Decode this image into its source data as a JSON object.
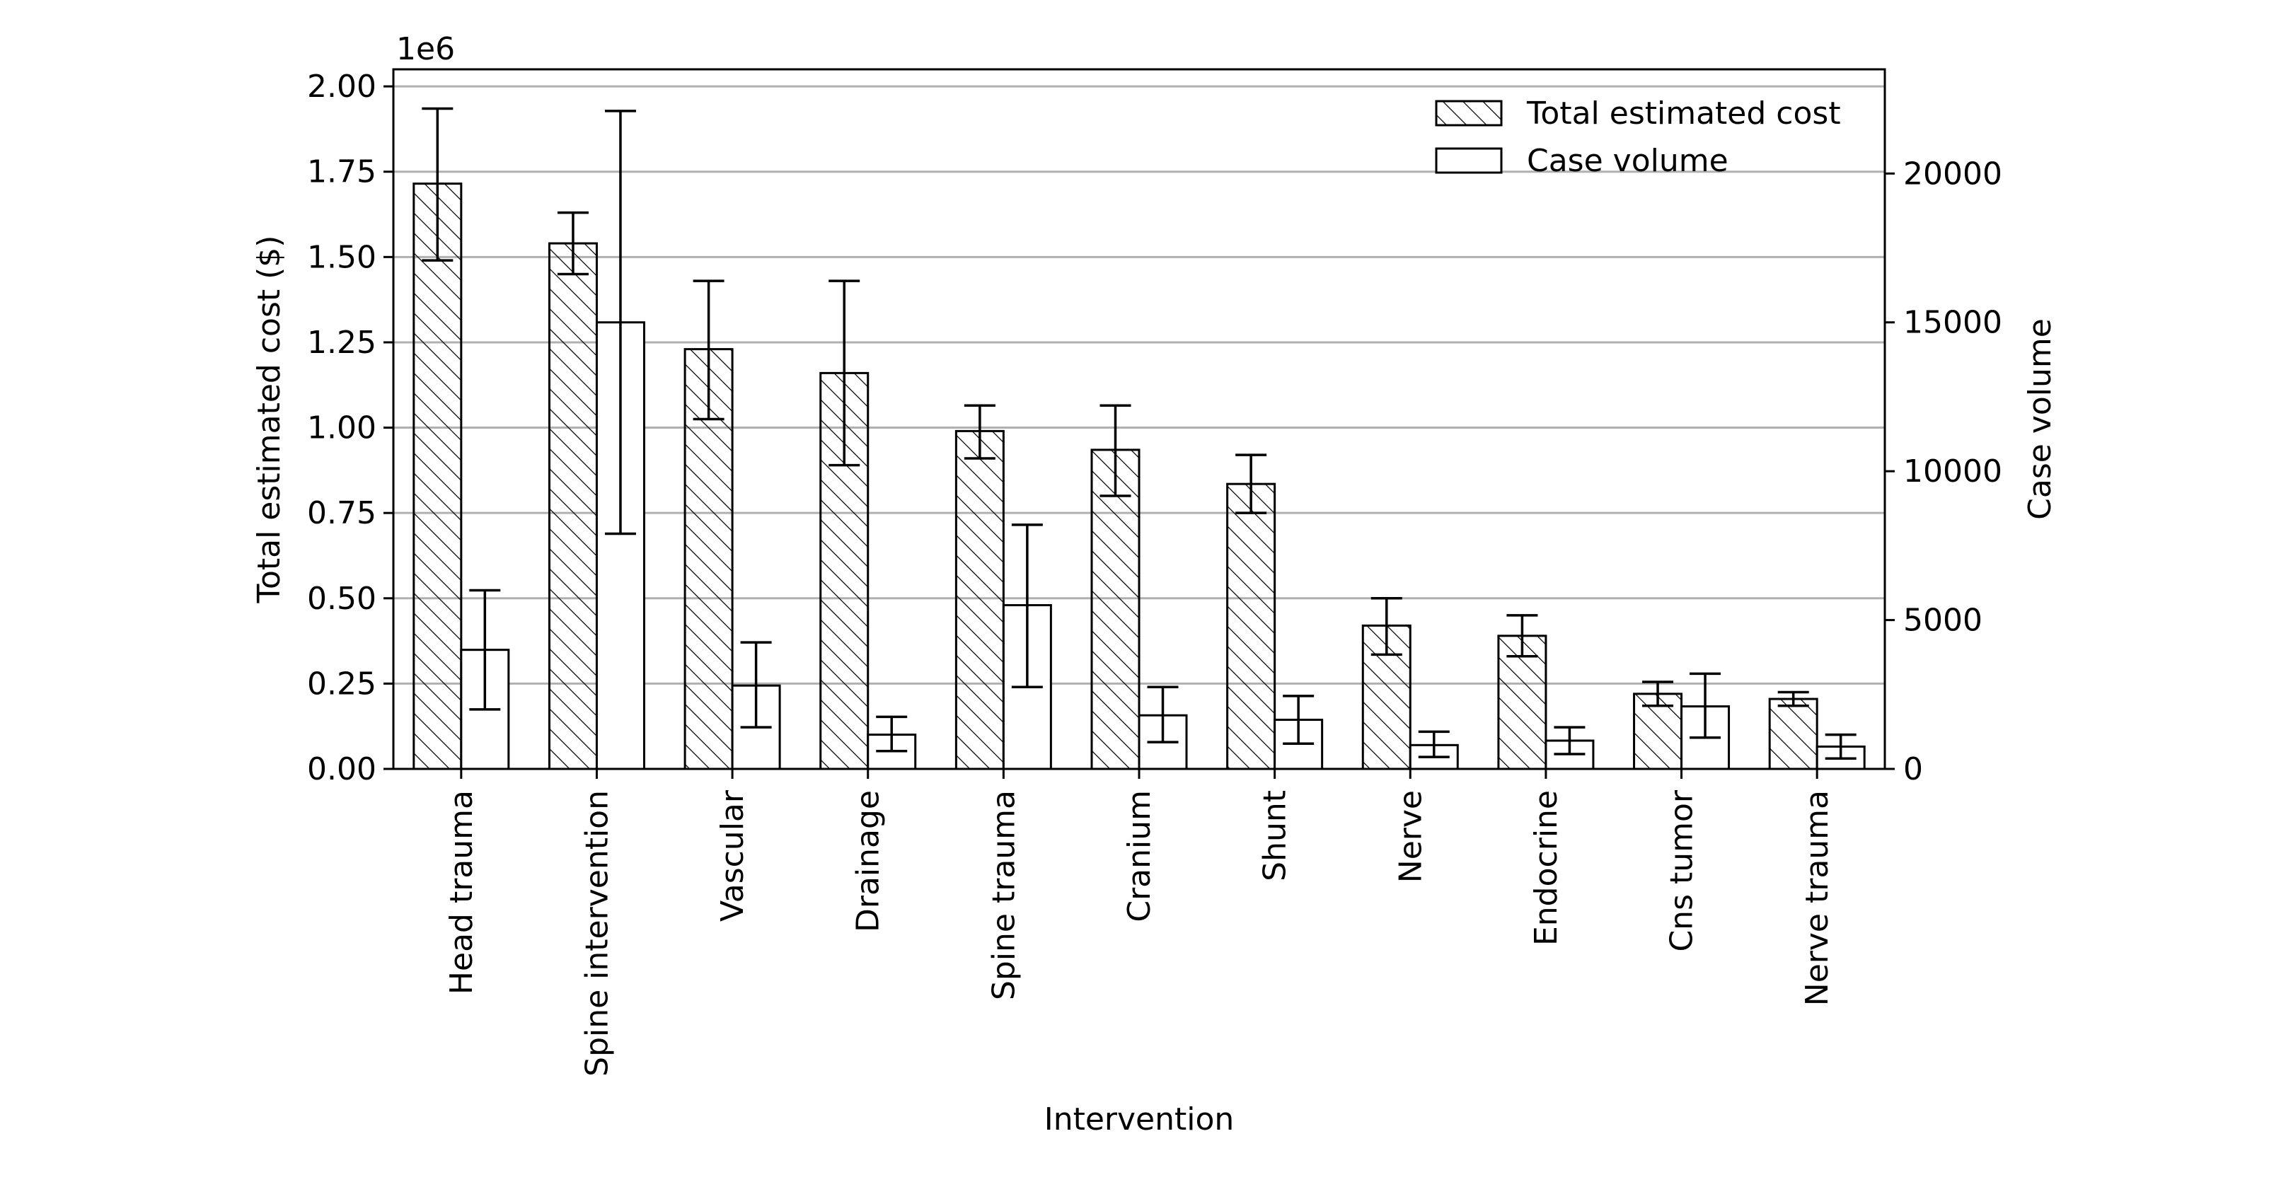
{
  "chart_data": {
    "type": "bar",
    "xlabel": "Intervention",
    "ylabel": "Total estimated cost ($)",
    "y2label": "Case volume",
    "y_scale_label": "1e6",
    "categories": [
      "Head trauma",
      "Spine intervention",
      "Vascular",
      "Drainage",
      "Spine trauma",
      "Cranium",
      "Shunt",
      "Nerve",
      "Endocrine",
      "Cns tumor",
      "Nerve trauma"
    ],
    "ylim": [
      0,
      2050000
    ],
    "y2lim": [
      0,
      23500
    ],
    "y_ticks": [
      0,
      250000,
      500000,
      750000,
      1000000,
      1250000,
      1500000,
      1750000,
      2000000
    ],
    "y_tick_labels": [
      "0.00",
      "0.25",
      "0.50",
      "0.75",
      "1.00",
      "1.25",
      "1.50",
      "1.75",
      "2.00"
    ],
    "y2_ticks": [
      0,
      5000,
      10000,
      15000,
      20000
    ],
    "y2_tick_labels": [
      "0",
      "5000",
      "10000",
      "15000",
      "20000"
    ],
    "grid": "horizontal",
    "legend_position": "top-right",
    "series": [
      {
        "name": "Total estimated cost",
        "axis": "left",
        "pattern": "hatch",
        "values": [
          1715000,
          1540000,
          1230000,
          1160000,
          990000,
          935000,
          835000,
          420000,
          390000,
          220000,
          205000
        ],
        "err_low": [
          1490000,
          1450000,
          1025000,
          890000,
          910000,
          800000,
          750000,
          335000,
          330000,
          185000,
          185000
        ],
        "err_high": [
          1935000,
          1630000,
          1430000,
          1430000,
          1065000,
          1065000,
          920000,
          500000,
          450000,
          255000,
          225000
        ]
      },
      {
        "name": "Case volume",
        "axis": "right",
        "pattern": "none",
        "values": [
          4000,
          15000,
          2800,
          1150,
          5500,
          1800,
          1650,
          800,
          950,
          2100,
          750
        ],
        "err_low": [
          2000,
          7900,
          1400,
          600,
          2750,
          900,
          850,
          400,
          500,
          1050,
          350
        ],
        "err_high": [
          6000,
          22100,
          4250,
          1750,
          8200,
          2750,
          2450,
          1250,
          1400,
          3200,
          1150
        ]
      }
    ]
  }
}
